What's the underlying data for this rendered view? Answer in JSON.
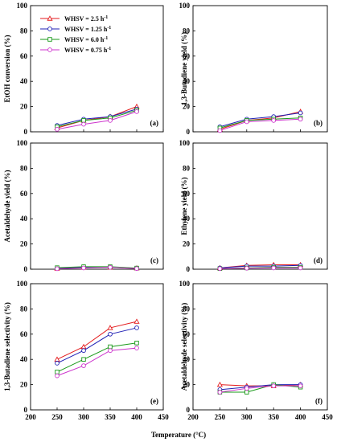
{
  "chart_data": [
    {
      "type": "line",
      "id": "a",
      "panel_label": "(a)",
      "ylabel": "EtOH conversion (%)",
      "xlabel": "",
      "xlim": [
        200,
        450
      ],
      "ylim": [
        0,
        100
      ],
      "xticks": [],
      "yticks": [
        0,
        20,
        40,
        60,
        80,
        100
      ],
      "x": [
        250,
        300,
        350,
        400
      ],
      "series": [
        {
          "name": "WHSV = 2.5 h",
          "values": [
            3,
            9,
            12,
            20
          ]
        },
        {
          "name": "WHSV = 1.25 h",
          "values": [
            5,
            10,
            12,
            18
          ]
        },
        {
          "name": "WHSV = 6.0 h",
          "values": [
            4,
            9,
            11,
            17
          ]
        },
        {
          "name": "WHSV = 0.75 h",
          "values": [
            2,
            6,
            9,
            16
          ]
        }
      ]
    },
    {
      "type": "line",
      "id": "b",
      "panel_label": "(b)",
      "ylabel": "1,3-Butadiene yield (%)",
      "xlabel": "",
      "xlim": [
        200,
        450
      ],
      "ylim": [
        0,
        100
      ],
      "xticks": [],
      "yticks": [
        0,
        20,
        40,
        60,
        80,
        100
      ],
      "x": [
        250,
        300,
        350,
        400
      ],
      "series": [
        {
          "name": "WHSV = 2.5 h",
          "values": [
            2,
            9,
            11,
            16
          ]
        },
        {
          "name": "WHSV = 1.25 h",
          "values": [
            4,
            10,
            12,
            15
          ]
        },
        {
          "name": "WHSV = 6.0 h",
          "values": [
            3,
            9,
            10,
            11
          ]
        },
        {
          "name": "WHSV = 0.75 h",
          "values": [
            1,
            8,
            9,
            10
          ]
        }
      ]
    },
    {
      "type": "line",
      "id": "c",
      "panel_label": "(c)",
      "ylabel": "Acetaldehyde yield (%)",
      "xlabel": "",
      "xlim": [
        200,
        450
      ],
      "ylim": [
        0,
        100
      ],
      "xticks": [],
      "yticks": [
        0,
        20,
        40,
        60,
        80,
        100
      ],
      "x": [
        250,
        300,
        350,
        400
      ],
      "series": [
        {
          "name": "WHSV = 2.5 h",
          "values": [
            0.6,
            1.5,
            1.5,
            0.8
          ]
        },
        {
          "name": "WHSV = 1.25 h",
          "values": [
            0.8,
            1.5,
            1.5,
            0.8
          ]
        },
        {
          "name": "WHSV = 6.0 h",
          "values": [
            1.2,
            2,
            2,
            0.9
          ]
        },
        {
          "name": "WHSV = 0.75 h",
          "values": [
            0.4,
            1,
            1.5,
            0.5
          ]
        }
      ]
    },
    {
      "type": "line",
      "id": "d",
      "panel_label": "(d)",
      "ylabel": "Ethylene yield (%)",
      "xlabel": "",
      "xlim": [
        200,
        450
      ],
      "ylim": [
        0,
        100
      ],
      "xticks": [],
      "yticks": [
        0,
        20,
        40,
        60,
        80,
        100
      ],
      "x": [
        250,
        300,
        350,
        400
      ],
      "series": [
        {
          "name": "WHSV = 2.5 h",
          "values": [
            1,
            3,
            3.5,
            3.5
          ]
        },
        {
          "name": "WHSV = 1.25 h",
          "values": [
            1,
            2.5,
            2.5,
            3
          ]
        },
        {
          "name": "WHSV = 6.0 h",
          "values": [
            0.5,
            1,
            1.5,
            1.5
          ]
        },
        {
          "name": "WHSV = 0.75 h",
          "values": [
            0.5,
            0.8,
            1,
            1
          ]
        }
      ]
    },
    {
      "type": "line",
      "id": "e",
      "panel_label": "(e)",
      "ylabel": "1,3-Butadiene selectivity (%)",
      "xlabel": "Temperature (°C)",
      "xlim": [
        200,
        450
      ],
      "ylim": [
        0,
        100
      ],
      "xticks": [
        200,
        250,
        300,
        350,
        400,
        450
      ],
      "yticks": [
        0,
        20,
        40,
        60,
        80,
        100
      ],
      "x": [
        250,
        300,
        350,
        400
      ],
      "series": [
        {
          "name": "WHSV = 2.5 h",
          "values": [
            40,
            50,
            65,
            70
          ]
        },
        {
          "name": "WHSV = 1.25 h",
          "values": [
            37,
            47,
            60,
            65
          ]
        },
        {
          "name": "WHSV = 6.0 h",
          "values": [
            30,
            40,
            50,
            53
          ]
        },
        {
          "name": "WHSV = 0.75 h",
          "values": [
            27,
            35,
            47,
            49
          ]
        }
      ]
    },
    {
      "type": "line",
      "id": "f",
      "panel_label": "(f)",
      "ylabel": "Acetaldehyde selectivity (%)",
      "xlabel": "",
      "xlim": [
        200,
        450
      ],
      "ylim": [
        0,
        100
      ],
      "xticks": [
        200,
        250,
        300,
        350,
        400,
        450
      ],
      "yticks": [
        0,
        20,
        40,
        60,
        80,
        100
      ],
      "x": [
        250,
        300,
        350,
        400
      ],
      "series": [
        {
          "name": "WHSV = 2.5 h",
          "values": [
            20,
            19,
            19,
            20
          ]
        },
        {
          "name": "WHSV = 1.25 h",
          "values": [
            16,
            18,
            20,
            20
          ]
        },
        {
          "name": "WHSV = 6.0 h",
          "values": [
            14,
            14,
            20,
            18
          ]
        },
        {
          "name": "WHSV = 0.75 h",
          "values": [
            14,
            17,
            19,
            19
          ]
        }
      ]
    }
  ],
  "legend": {
    "placement": "top-left of panel (a)",
    "superscript": "-1",
    "entries": [
      {
        "label": "WHSV = 2.5 h",
        "color": "#e41a1c",
        "marker": "triangle"
      },
      {
        "label": "WHSV = 1.25 h",
        "color": "#1f1fb4",
        "marker": "circle"
      },
      {
        "label": "WHSV = 6.0 h",
        "color": "#1a9a1a",
        "marker": "square"
      },
      {
        "label": "WHSV = 0.75 h",
        "color": "#cc33cc",
        "marker": "circle"
      }
    ]
  },
  "shared_xlabel": "Temperature (°C)",
  "series_colors": [
    "#e41a1c",
    "#1f1fb4",
    "#1a9a1a",
    "#cc33cc"
  ],
  "series_markers": [
    "triangle",
    "circle",
    "square",
    "circle"
  ]
}
